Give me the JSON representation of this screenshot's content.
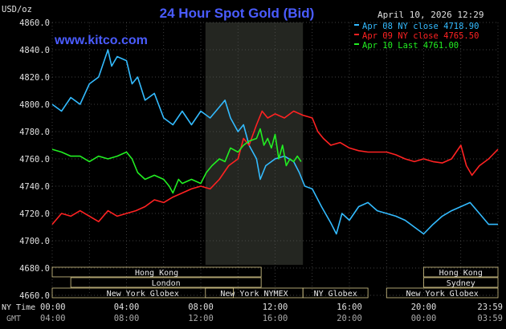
{
  "title": "24 Hour Spot Gold (Bid)",
  "watermark": "www.kitco.com",
  "timestamp": "April 10, 2026 12:29",
  "y_unit": "USD/oz",
  "time_labels": {
    "ny": "NY Time",
    "gmt": "GMT"
  },
  "colors": {
    "background": "#000000",
    "title": "#4a5cff",
    "grid": "#555555",
    "session_shade": "#242621",
    "session_box": "#d8c98a",
    "series_apr08": "#33bbff",
    "series_apr09": "#ff2222",
    "series_apr10": "#22ee22"
  },
  "legend": [
    {
      "text": "Apr 08 NY close 4718.90",
      "color": "#33bbff"
    },
    {
      "text": "Apr 09 NY close 4765.50",
      "color": "#ff2222"
    },
    {
      "text": "Apr 10 Last 4761.00",
      "color": "#22ee22"
    }
  ],
  "sessions": [
    {
      "name": "Hong Kong",
      "start": 0,
      "end": 11.25,
      "row": 0
    },
    {
      "name": "Hong Kong",
      "start": 20,
      "end": 24,
      "row": 0
    },
    {
      "name": "London",
      "start": 1,
      "end": 11.25,
      "row": 1
    },
    {
      "name": "Sydney",
      "start": 20,
      "end": 24,
      "row": 1
    },
    {
      "name": "New York Globex",
      "start": 0,
      "end": 9.75,
      "row": 2
    },
    {
      "name": "New York NYMEX",
      "start": 8.25,
      "end": 13.5,
      "row": 2
    },
    {
      "name": "NY Globex",
      "start": 13.5,
      "end": 17,
      "row": 2
    },
    {
      "name": "New York Globex",
      "start": 18,
      "end": 24,
      "row": 2
    }
  ],
  "chart_data": {
    "type": "line",
    "title": "24 Hour Spot Gold (Bid)",
    "ylabel": "USD/oz",
    "xlabel": "",
    "ylim": [
      4660,
      4860
    ],
    "xlim": [
      0,
      24
    ],
    "y_ticks": [
      "4860.0",
      "4840.0",
      "4820.0",
      "4800.0",
      "4780.0",
      "4760.0",
      "4740.0",
      "4720.0",
      "4700.0",
      "4680.0",
      "4660.0"
    ],
    "x_ticks_ny": [
      "00:00",
      "04:00",
      "08:00",
      "12:00",
      "16:00",
      "20:00",
      "23:59"
    ],
    "x_ticks_gmt": [
      "04:00",
      "08:00",
      "12:00",
      "16:00",
      "20:00",
      "00:00",
      "03:59"
    ],
    "x_tick_hours": [
      0,
      4,
      8,
      12,
      16,
      20,
      24
    ],
    "shaded_region": [
      8.25,
      13.5
    ],
    "grid": true,
    "legend_position": "top-right",
    "series": [
      {
        "name": "Apr 08 NY close 4718.90",
        "color": "#33bbff",
        "points": [
          [
            0,
            4800
          ],
          [
            0.5,
            4795
          ],
          [
            1,
            4805
          ],
          [
            1.5,
            4800
          ],
          [
            2,
            4815
          ],
          [
            2.5,
            4820
          ],
          [
            3,
            4840
          ],
          [
            3.2,
            4828
          ],
          [
            3.5,
            4835
          ],
          [
            4,
            4832
          ],
          [
            4.3,
            4815
          ],
          [
            4.6,
            4820
          ],
          [
            5,
            4803
          ],
          [
            5.5,
            4808
          ],
          [
            6,
            4790
          ],
          [
            6.5,
            4785
          ],
          [
            7,
            4795
          ],
          [
            7.5,
            4785
          ],
          [
            8,
            4795
          ],
          [
            8.5,
            4790
          ],
          [
            9,
            4798
          ],
          [
            9.3,
            4803
          ],
          [
            9.6,
            4790
          ],
          [
            10,
            4780
          ],
          [
            10.3,
            4785
          ],
          [
            10.6,
            4770
          ],
          [
            11,
            4760
          ],
          [
            11.2,
            4745
          ],
          [
            11.5,
            4755
          ],
          [
            12,
            4760
          ],
          [
            12.5,
            4762
          ],
          [
            13,
            4758
          ],
          [
            13.3,
            4750
          ],
          [
            13.6,
            4740
          ],
          [
            14,
            4738
          ],
          [
            14.5,
            4725
          ],
          [
            15,
            4713
          ],
          [
            15.3,
            4705
          ],
          [
            15.6,
            4720
          ],
          [
            16,
            4715
          ],
          [
            16.5,
            4725
          ],
          [
            17,
            4728
          ],
          [
            17.5,
            4722
          ],
          [
            18,
            4720
          ],
          [
            18.5,
            4718
          ],
          [
            19,
            4715
          ],
          [
            19.5,
            4710
          ],
          [
            20,
            4705
          ],
          [
            20.5,
            4712
          ],
          [
            21,
            4718
          ],
          [
            21.5,
            4722
          ],
          [
            22,
            4725
          ],
          [
            22.5,
            4728
          ],
          [
            23,
            4720
          ],
          [
            23.5,
            4712
          ],
          [
            24,
            4712
          ]
        ]
      },
      {
        "name": "Apr 09 NY close 4765.50",
        "color": "#ff2222",
        "points": [
          [
            0,
            4712
          ],
          [
            0.5,
            4720
          ],
          [
            1,
            4718
          ],
          [
            1.5,
            4722
          ],
          [
            2,
            4718
          ],
          [
            2.5,
            4714
          ],
          [
            3,
            4722
          ],
          [
            3.5,
            4718
          ],
          [
            4,
            4720
          ],
          [
            4.5,
            4722
          ],
          [
            5,
            4725
          ],
          [
            5.5,
            4730
          ],
          [
            6,
            4728
          ],
          [
            6.5,
            4732
          ],
          [
            7,
            4735
          ],
          [
            7.5,
            4738
          ],
          [
            8,
            4740
          ],
          [
            8.5,
            4738
          ],
          [
            9,
            4745
          ],
          [
            9.5,
            4755
          ],
          [
            10,
            4760
          ],
          [
            10.3,
            4775
          ],
          [
            10.6,
            4770
          ],
          [
            11,
            4785
          ],
          [
            11.3,
            4795
          ],
          [
            11.6,
            4790
          ],
          [
            12,
            4793
          ],
          [
            12.5,
            4790
          ],
          [
            13,
            4795
          ],
          [
            13.5,
            4792
          ],
          [
            14,
            4790
          ],
          [
            14.3,
            4780
          ],
          [
            14.6,
            4775
          ],
          [
            15,
            4770
          ],
          [
            15.5,
            4772
          ],
          [
            16,
            4768
          ],
          [
            16.5,
            4766
          ],
          [
            17,
            4765
          ],
          [
            17.5,
            4765
          ],
          [
            18,
            4765
          ],
          [
            18.5,
            4763
          ],
          [
            19,
            4760
          ],
          [
            19.5,
            4758
          ],
          [
            20,
            4760
          ],
          [
            20.5,
            4758
          ],
          [
            21,
            4757
          ],
          [
            21.5,
            4760
          ],
          [
            22,
            4770
          ],
          [
            22.3,
            4755
          ],
          [
            22.6,
            4748
          ],
          [
            23,
            4755
          ],
          [
            23.5,
            4760
          ],
          [
            24,
            4767
          ]
        ]
      },
      {
        "name": "Apr 10 Last 4761.00",
        "color": "#22ee22",
        "points": [
          [
            0,
            4767
          ],
          [
            0.5,
            4765
          ],
          [
            1,
            4762
          ],
          [
            1.5,
            4762
          ],
          [
            2,
            4758
          ],
          [
            2.5,
            4762
          ],
          [
            3,
            4760
          ],
          [
            3.5,
            4762
          ],
          [
            4,
            4765
          ],
          [
            4.3,
            4760
          ],
          [
            4.6,
            4750
          ],
          [
            5,
            4745
          ],
          [
            5.5,
            4748
          ],
          [
            6,
            4745
          ],
          [
            6.3,
            4740
          ],
          [
            6.5,
            4735
          ],
          [
            6.8,
            4745
          ],
          [
            7,
            4742
          ],
          [
            7.5,
            4745
          ],
          [
            8,
            4742
          ],
          [
            8.3,
            4750
          ],
          [
            8.6,
            4755
          ],
          [
            9,
            4760
          ],
          [
            9.3,
            4758
          ],
          [
            9.6,
            4768
          ],
          [
            10,
            4765
          ],
          [
            10.3,
            4770
          ],
          [
            10.6,
            4773
          ],
          [
            11,
            4775
          ],
          [
            11.2,
            4782
          ],
          [
            11.4,
            4770
          ],
          [
            11.6,
            4775
          ],
          [
            11.8,
            4768
          ],
          [
            12,
            4778
          ],
          [
            12.2,
            4760
          ],
          [
            12.4,
            4770
          ],
          [
            12.6,
            4755
          ],
          [
            12.8,
            4760
          ],
          [
            13,
            4758
          ],
          [
            13.2,
            4762
          ],
          [
            13.4,
            4758
          ]
        ]
      }
    ]
  }
}
